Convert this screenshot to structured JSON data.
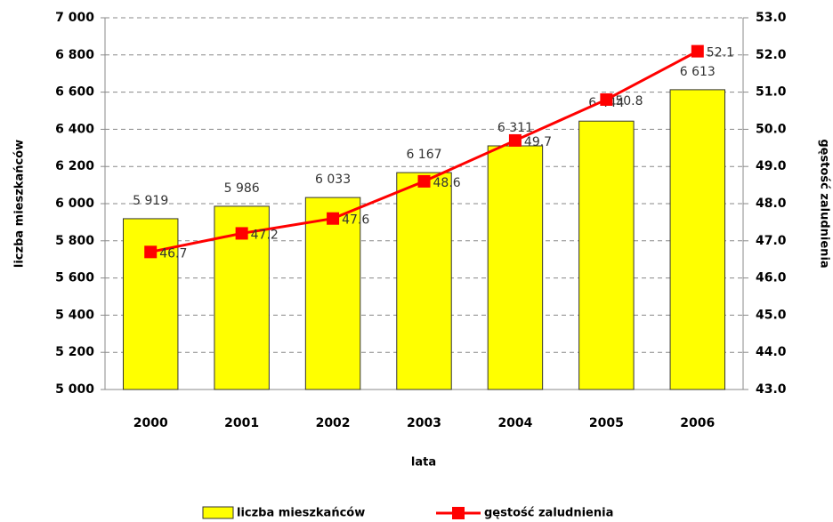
{
  "chart_data": {
    "type": "bar",
    "categories": [
      "2000",
      "2001",
      "2002",
      "2003",
      "2004",
      "2005",
      "2006"
    ],
    "series": [
      {
        "name": "liczba mieszkańców",
        "type": "bar",
        "color": "#ffff00",
        "values": [
          5919,
          5986,
          6033,
          6167,
          6311,
          6444,
          6613
        ],
        "value_labels": [
          "5 919",
          "5 986",
          "6 033",
          "6 167",
          "6 311",
          "6 444",
          "6 613"
        ]
      },
      {
        "name": "gęstość zaludnienia",
        "type": "line",
        "axis": "y2",
        "color": "#ff0000",
        "values": [
          46.7,
          47.2,
          47.6,
          48.6,
          49.7,
          50.8,
          52.1
        ]
      }
    ],
    "ylim": [
      5000,
      7000
    ],
    "yticks": [
      {
        "value": 5000,
        "label": "5 000"
      },
      {
        "value": 5200,
        "label": "5 200"
      },
      {
        "value": 5400,
        "label": "5 400"
      },
      {
        "value": 5600,
        "label": "5 600"
      },
      {
        "value": 5800,
        "label": "5 800"
      },
      {
        "value": 6000,
        "label": "6 000"
      },
      {
        "value": 6200,
        "label": "6 200"
      },
      {
        "value": 6400,
        "label": "6 400"
      },
      {
        "value": 6600,
        "label": "6 600"
      },
      {
        "value": 6800,
        "label": "6 800"
      },
      {
        "value": 7000,
        "label": "7 000"
      }
    ],
    "y2lim": [
      43,
      53
    ],
    "y2ticks": [
      {
        "value": 43,
        "label": "43.0"
      },
      {
        "value": 44,
        "label": "44.0"
      },
      {
        "value": 45,
        "label": "45.0"
      },
      {
        "value": 46,
        "label": "46.0"
      },
      {
        "value": 47,
        "label": "47.0"
      },
      {
        "value": 48,
        "label": "48.0"
      },
      {
        "value": 49,
        "label": "49.0"
      },
      {
        "value": 50,
        "label": "50.0"
      },
      {
        "value": 51,
        "label": "51.0"
      },
      {
        "value": 52,
        "label": "52.0"
      },
      {
        "value": 53,
        "label": "53.0"
      }
    ],
    "xlabel": "lata",
    "ylabel": "liczba mieszkańców",
    "y2label": "gęstość zaludnienia",
    "grid": true,
    "legend": "bottom"
  }
}
